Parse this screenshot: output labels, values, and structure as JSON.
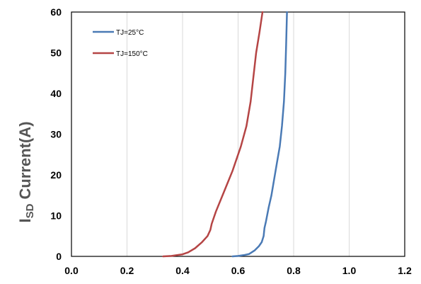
{
  "chart_data": {
    "type": "line",
    "title": "",
    "xlabel": "",
    "ylabel": {
      "prefix": "I",
      "subscript": "SD",
      "suffix": " Current(A)"
    },
    "xlim": [
      0.0,
      1.2
    ],
    "ylim": [
      0,
      60
    ],
    "x_ticks": [
      "0.0",
      "0.2",
      "0.4",
      "0.6",
      "0.8",
      "1.0",
      "1.2"
    ],
    "y_ticks": [
      "0",
      "10",
      "20",
      "30",
      "40",
      "50",
      "60"
    ],
    "grid": "vertical",
    "legend": "top-left",
    "series": [
      {
        "name": "TJ=25°C",
        "color": "#4a7ab5",
        "points": [
          [
            0.58,
            0
          ],
          [
            0.6,
            0.1
          ],
          [
            0.62,
            0.3
          ],
          [
            0.64,
            0.6
          ],
          [
            0.66,
            1.5
          ],
          [
            0.675,
            2.5
          ],
          [
            0.685,
            3.5
          ],
          [
            0.692,
            5
          ],
          [
            0.695,
            7
          ],
          [
            0.7,
            8.5
          ],
          [
            0.71,
            12
          ],
          [
            0.72,
            15
          ],
          [
            0.73,
            19
          ],
          [
            0.74,
            23
          ],
          [
            0.75,
            27
          ],
          [
            0.758,
            32
          ],
          [
            0.765,
            38
          ],
          [
            0.77,
            45
          ],
          [
            0.773,
            52
          ],
          [
            0.776,
            60
          ]
        ]
      },
      {
        "name": "TJ=150°C",
        "color": "#b54545",
        "points": [
          [
            0.33,
            0
          ],
          [
            0.36,
            0.1
          ],
          [
            0.4,
            0.5
          ],
          [
            0.42,
            1
          ],
          [
            0.445,
            2
          ],
          [
            0.47,
            3.5
          ],
          [
            0.49,
            5
          ],
          [
            0.5,
            6.5
          ],
          [
            0.505,
            8
          ],
          [
            0.52,
            11
          ],
          [
            0.55,
            16
          ],
          [
            0.58,
            21
          ],
          [
            0.61,
            27
          ],
          [
            0.63,
            32
          ],
          [
            0.645,
            38
          ],
          [
            0.655,
            44
          ],
          [
            0.665,
            50
          ],
          [
            0.677,
            55
          ],
          [
            0.688,
            60
          ]
        ]
      }
    ]
  }
}
